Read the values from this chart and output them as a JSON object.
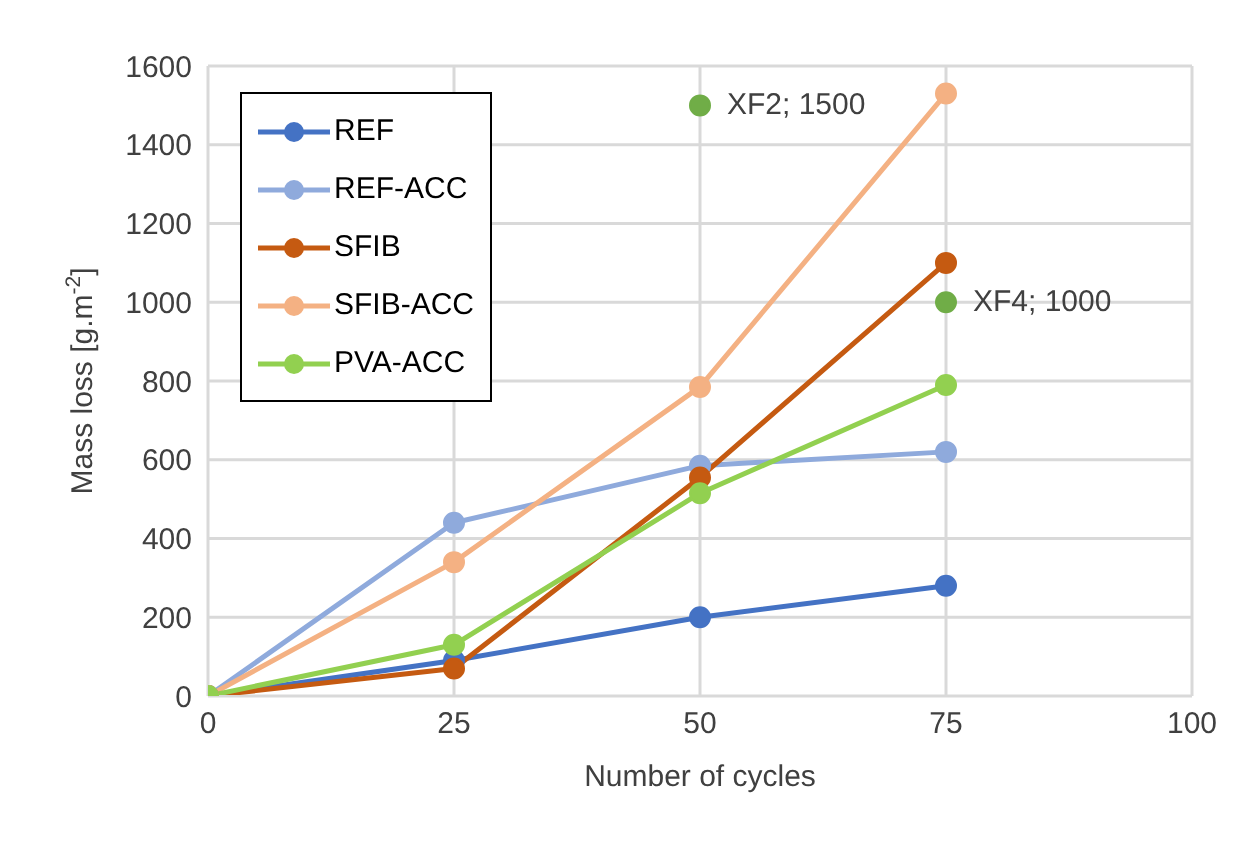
{
  "chart_data": {
    "type": "line",
    "xlabel": "Number  of cycles",
    "ylabel": "Mass loss [g.m$^{-2}$]",
    "x": [
      0,
      25,
      50,
      75
    ],
    "series": [
      {
        "name": "REF",
        "color": "#4472c4",
        "values": [
          0,
          90,
          200,
          280
        ]
      },
      {
        "name": "REF-ACC",
        "color": "#8faadc",
        "values": [
          0,
          440,
          585,
          620
        ]
      },
      {
        "name": "SFIB",
        "color": "#c55a11",
        "values": [
          0,
          70,
          555,
          1100
        ]
      },
      {
        "name": "SFIB-ACC",
        "color": "#f4b183",
        "values": [
          0,
          340,
          785,
          1530
        ]
      },
      {
        "name": "PVA-ACC",
        "color": "#92d050",
        "values": [
          0,
          130,
          515,
          790
        ]
      },
      {
        "type": "scatter",
        "color": "#70ad47",
        "x": [
          50,
          75
        ],
        "values": [
          1500,
          1000
        ],
        "value_labels": [
          "XF2; 1500",
          "XF4; 1000"
        ]
      }
    ],
    "xlim": [
      0,
      100
    ],
    "xticks": [
      0,
      25,
      50,
      75,
      100
    ],
    "ylim": [
      0,
      1600
    ],
    "yticks": [
      0,
      200,
      400,
      600,
      800,
      1000,
      1200,
      1400,
      1600
    ],
    "grid": true,
    "legend": "top left",
    "marker": "circle"
  }
}
